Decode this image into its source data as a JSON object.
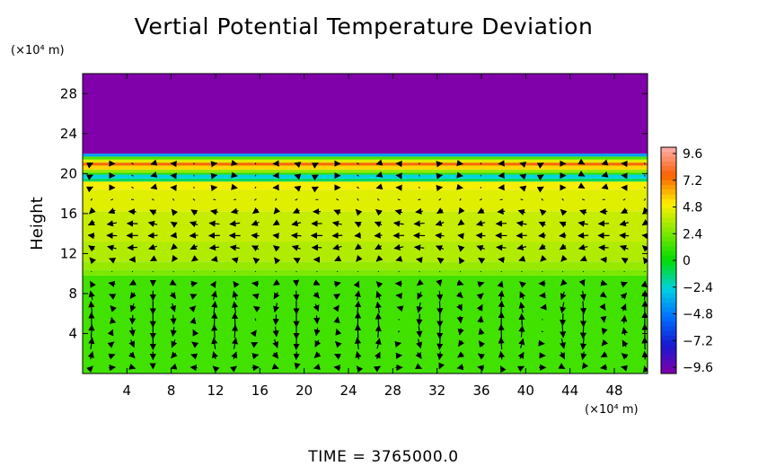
{
  "chart_data": {
    "type": "heatmap",
    "title": "Vertial Potential Temperature Deviation",
    "ylabel": "Height",
    "y_unit": "(×10⁴ m)",
    "x_unit": "(×10⁴ m)",
    "x_ticks": [
      "4",
      "8",
      "12",
      "16",
      "20",
      "24",
      "28",
      "32",
      "36",
      "40",
      "44",
      "48"
    ],
    "y_ticks": [
      "4",
      "8",
      "12",
      "16",
      "20",
      "24",
      "28"
    ],
    "xlim": [
      0,
      51
    ],
    "ylim": [
      0,
      30
    ],
    "colorbar": {
      "ticks": [
        "9.6",
        "7.2",
        "4.8",
        "2.4",
        "0",
        "−2.4",
        "−4.8",
        "−7.2",
        "−9.6"
      ],
      "range": [
        -9.6,
        9.6
      ]
    },
    "field_bands": [
      {
        "y_from": 0,
        "y_to": 9.8,
        "value": 1.2
      },
      {
        "y_from": 9.8,
        "y_to": 10.4,
        "value": 2.3
      },
      {
        "y_from": 10.4,
        "y_to": 11.2,
        "value": 2.8
      },
      {
        "y_from": 11.2,
        "y_to": 13.2,
        "value": 3.3
      },
      {
        "y_from": 13.2,
        "y_to": 16.2,
        "value": 3.7
      },
      {
        "y_from": 16.2,
        "y_to": 18.4,
        "value": 4.2
      },
      {
        "y_from": 18.4,
        "y_to": 19.2,
        "value": 4.6
      },
      {
        "y_from": 19.2,
        "y_to": 19.5,
        "value": -1.0
      },
      {
        "y_from": 19.5,
        "y_to": 19.9,
        "value": -2.4
      },
      {
        "y_from": 19.9,
        "y_to": 20.1,
        "value": 0.8
      },
      {
        "y_from": 20.1,
        "y_to": 20.4,
        "value": 2.8
      },
      {
        "y_from": 20.4,
        "y_to": 20.8,
        "value": 5.2
      },
      {
        "y_from": 20.8,
        "y_to": 21.1,
        "value": 7.0
      },
      {
        "y_from": 21.1,
        "y_to": 21.4,
        "value": 4.2
      },
      {
        "y_from": 21.4,
        "y_to": 21.7,
        "value": 1.5
      },
      {
        "y_from": 21.7,
        "y_to": 22.0,
        "value": -3.6
      },
      {
        "y_from": 22.0,
        "y_to": 30,
        "value": -9.6
      }
    ],
    "time_label": "TIME  =  3765000.0"
  }
}
